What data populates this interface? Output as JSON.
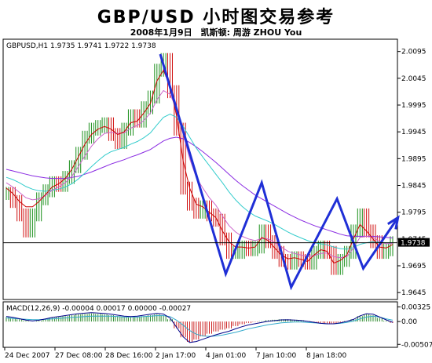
{
  "header": {
    "title": "GBP/USD 小时图交易参考",
    "subtitle": "2008年1月9日　凯斯顿: 周游 ZHOU You"
  },
  "chart_data": {
    "type": "line",
    "symbol_line": "GBPUSD,H1  1.9735 1.9741 1.9722 1.9738",
    "macd_label": "MACD(12,26,9) -0.00004 0.00017 0.00000 -0.00027",
    "current_price_label": "1.9738",
    "current_price": 1.9738,
    "x_labels": [
      "24 Dec 2007",
      "27 Dec 08:00",
      "28 Dec 16:00",
      "2 Jan 17:00",
      "4 Jan 01:00",
      "7 Jan 10:00",
      "8 Jan 18:00"
    ],
    "y_ticks": [
      2.0095,
      2.0045,
      1.9995,
      1.9945,
      1.9895,
      1.9845,
      1.9795,
      1.9745,
      1.9695,
      1.9645
    ],
    "y_tick_labels": [
      "2.0095",
      "2.0045",
      "1.9995",
      "1.9945",
      "1.9895",
      "1.9845",
      "1.9795",
      "1.9745",
      "1.9695",
      "1.9645"
    ],
    "ylim": [
      1.9635,
      2.0115
    ],
    "macd_y_tick_labels": [
      "0.00325",
      "0.00",
      "-0.00507"
    ],
    "macd_ylim": [
      -0.0052,
      0.0035
    ],
    "close_series": [
      1.983,
      1.9815,
      1.979,
      1.976,
      1.979,
      1.982,
      1.9835,
      1.985,
      1.9845,
      1.986,
      1.988,
      1.9905,
      1.9935,
      1.995,
      1.9955,
      1.996,
      1.994,
      1.9925,
      1.995,
      1.9975,
      1.9965,
      1.999,
      2.001,
      2.006,
      2.008,
      2.002,
      1.995,
      1.984,
      1.981,
      1.9795,
      1.9805,
      1.979,
      1.978,
      1.9745,
      1.972,
      1.972,
      1.973,
      1.9725,
      1.973,
      1.976,
      1.974,
      1.972,
      1.9705,
      1.97,
      1.971,
      1.9705,
      1.97,
      1.972,
      1.973,
      1.972,
      1.969,
      1.9705,
      1.972,
      1.976,
      1.979,
      1.976,
      1.974,
      1.972,
      1.9725,
      1.9738
    ],
    "ma_fast": [
      1.984,
      1.983,
      1.9815,
      1.9805,
      1.9805,
      1.9815,
      1.9828,
      1.9842,
      1.9848,
      1.9858,
      1.9875,
      1.9898,
      1.9922,
      1.994,
      1.995,
      1.9955,
      1.995,
      1.994,
      1.9945,
      1.9962,
      1.9965,
      1.998,
      1.9998,
      2.004,
      2.006,
      2.003,
      1.9975,
      1.989,
      1.984,
      1.981,
      1.9805,
      1.9795,
      1.9785,
      1.976,
      1.974,
      1.973,
      1.973,
      1.9728,
      1.973,
      1.9748,
      1.9742,
      1.9728,
      1.9715,
      1.9708,
      1.971,
      1.9707,
      1.9703,
      1.9715,
      1.9725,
      1.9722,
      1.97,
      1.9705,
      1.9715,
      1.9745,
      1.9772,
      1.976,
      1.9745,
      1.973,
      1.9728,
      1.9735
    ],
    "ma_mid": [
      1.985,
      1.9842,
      1.9832,
      1.9822,
      1.9818,
      1.982,
      1.9826,
      1.9836,
      1.9842,
      1.985,
      1.9862,
      1.988,
      1.99,
      1.9918,
      1.9932,
      1.9942,
      1.9944,
      1.9942,
      1.9943,
      1.9952,
      1.9957,
      1.9966,
      1.998,
      2.0005,
      2.0022,
      2.0015,
      1.9988,
      1.994,
      1.9895,
      1.986,
      1.984,
      1.9822,
      1.9808,
      1.9788,
      1.977,
      1.9758,
      1.975,
      1.9745,
      1.9742,
      1.9746,
      1.9745,
      1.9738,
      1.973,
      1.9722,
      1.9718,
      1.9715,
      1.9712,
      1.9714,
      1.9718,
      1.9719,
      1.9712,
      1.971,
      1.9712,
      1.9728,
      1.9748,
      1.975,
      1.9748,
      1.974,
      1.9736,
      1.9737
    ],
    "ma_slow": [
      1.986,
      1.9856,
      1.985,
      1.9843,
      1.9838,
      1.9835,
      1.9834,
      1.9836,
      1.9838,
      1.9842,
      1.9848,
      1.9857,
      1.9868,
      1.988,
      1.9891,
      1.9901,
      1.9908,
      1.9912,
      1.9916,
      1.9922,
      1.9927,
      1.9934,
      1.9943,
      1.9958,
      1.9972,
      1.9978,
      1.9972,
      1.9955,
      1.9935,
      1.9915,
      1.9898,
      1.9882,
      1.9866,
      1.985,
      1.9833,
      1.9818,
      1.9806,
      1.9796,
      1.9788,
      1.9783,
      1.9778,
      1.9772,
      1.9765,
      1.9758,
      1.9752,
      1.9747,
      1.9742,
      1.9738,
      1.9736,
      1.9734,
      1.973,
      1.9727,
      1.9726,
      1.9729,
      1.9735,
      1.9738,
      1.974,
      1.9739,
      1.9738,
      1.9738
    ],
    "ma_long": [
      1.9875,
      1.9872,
      1.9869,
      1.9866,
      1.9863,
      1.9861,
      1.9859,
      1.9858,
      1.9858,
      1.9858,
      1.986,
      1.9862,
      1.9866,
      1.987,
      1.9875,
      1.988,
      1.9885,
      1.9889,
      1.9893,
      1.9898,
      1.9902,
      1.9907,
      1.9912,
      1.992,
      1.9928,
      1.9933,
      1.9935,
      1.9932,
      1.9925,
      1.9917,
      1.9908,
      1.9898,
      1.9888,
      1.9877,
      1.9866,
      1.9855,
      1.9845,
      1.9836,
      1.9827,
      1.982,
      1.9813,
      1.9806,
      1.9799,
      1.9792,
      1.9786,
      1.978,
      1.9775,
      1.977,
      1.9766,
      1.9762,
      1.9758,
      1.9754,
      1.9751,
      1.975,
      1.975,
      1.975,
      1.975,
      1.9749,
      1.9748,
      1.9747
    ],
    "zigzag": [
      {
        "i": 23.5,
        "y": 2.009
      },
      {
        "i": 33.5,
        "y": 1.968
      },
      {
        "i": 39,
        "y": 1.985
      },
      {
        "i": 43.5,
        "y": 1.9655
      },
      {
        "i": 50.5,
        "y": 1.982
      },
      {
        "i": 54.5,
        "y": 1.969
      },
      {
        "i": 59.8,
        "y": 1.9785
      }
    ],
    "macd_hist": [
      0.001,
      0.0008,
      0.0005,
      0.0002,
      0.0,
      0.0002,
      0.0005,
      0.0008,
      0.001,
      0.0012,
      0.0014,
      0.0016,
      0.0017,
      0.0018,
      0.0017,
      0.0016,
      0.0014,
      0.0012,
      0.001,
      0.0009,
      0.001,
      0.0012,
      0.0014,
      0.0016,
      0.0014,
      0.0005,
      -0.0015,
      -0.0035,
      -0.0045,
      -0.004,
      -0.0033,
      -0.0027,
      -0.0022,
      -0.0018,
      -0.0015,
      -0.001,
      -0.0006,
      -0.0003,
      -0.0001,
      0.0001,
      0.0003,
      0.0004,
      0.0005,
      0.0005,
      0.0004,
      0.0003,
      0.0001,
      -0.0001,
      -0.0003,
      -0.0004,
      -0.0004,
      -0.0002,
      0.0001,
      0.0005,
      0.0012,
      0.0016,
      0.0014,
      0.0008,
      0.0002,
      -0.0003
    ],
    "macd_signal": [
      0.0008,
      0.0007,
      0.0006,
      0.0005,
      0.0004,
      0.0004,
      0.0005,
      0.0006,
      0.0007,
      0.0008,
      0.0009,
      0.001,
      0.0011,
      0.0012,
      0.0012,
      0.0012,
      0.0012,
      0.0011,
      0.001,
      0.001,
      0.001,
      0.0011,
      0.0012,
      0.0013,
      0.0013,
      0.0011,
      0.0003,
      -0.0008,
      -0.002,
      -0.0028,
      -0.0032,
      -0.0033,
      -0.0032,
      -0.003,
      -0.0027,
      -0.0024,
      -0.002,
      -0.0016,
      -0.0013,
      -0.001,
      -0.0007,
      -0.0005,
      -0.0003,
      -0.0002,
      -0.0001,
      -0.0001,
      -0.0002,
      -0.0003,
      -0.0004,
      -0.0005,
      -0.0005,
      -0.0004,
      -0.0002,
      0.0001,
      0.0006,
      0.001,
      0.0012,
      0.001,
      0.0006,
      0.0003
    ],
    "colors": {
      "price_up": "#1a8f1a",
      "price_down": "#d01010",
      "ma_fast": "#cc0000",
      "ma_mid": "#cc66cc",
      "ma_slow": "#33cccc",
      "ma_long": "#8a2be2",
      "zigzag": "#1f2fd6",
      "macd_line": "#000088",
      "macd_signal": "#33aacc",
      "hist_up": "#2e8b2e",
      "hist_down": "#cc2222"
    }
  }
}
